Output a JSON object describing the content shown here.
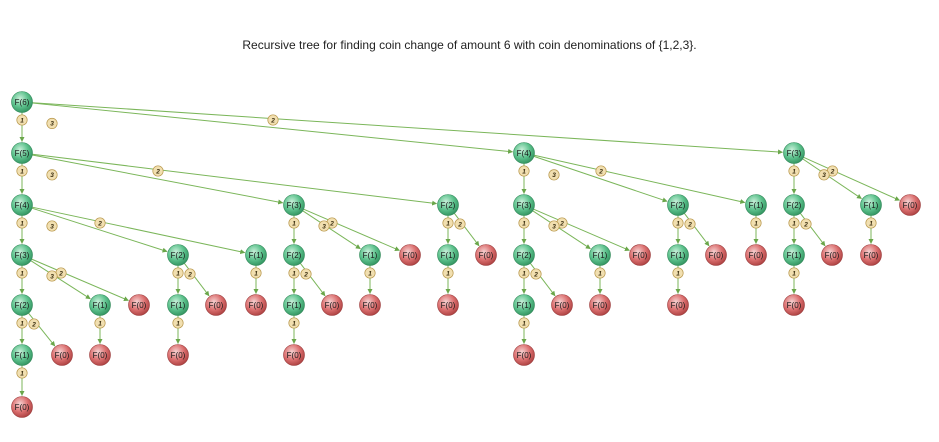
{
  "title": "Recursive tree for finding coin change of amount 6 with coin denominations of {1,2,3}.",
  "colors": {
    "nonzero_node": "#55bd86",
    "zero_node": "#d96a6a",
    "edge": "#7bb65a",
    "coin_fill": "#f1dfb0",
    "coin_stroke": "#b8974b"
  },
  "tree": {
    "label": "F(6)",
    "children": [
      {
        "coin": "1",
        "label": "F(5)",
        "children": [
          {
            "coin": "1",
            "label": "F(4)",
            "children": [
              {
                "coin": "1",
                "label": "F(3)",
                "children": [
                  {
                    "coin": "1",
                    "label": "F(2)",
                    "children": [
                      {
                        "coin": "1",
                        "label": "F(1)",
                        "children": [
                          {
                            "coin": "1",
                            "label": "F(0)"
                          }
                        ]
                      },
                      {
                        "coin": "2",
                        "label": "F(0)"
                      }
                    ]
                  },
                  {
                    "coin": "2",
                    "label": "F(1)",
                    "children": [
                      {
                        "coin": "1",
                        "label": "F(0)"
                      }
                    ]
                  },
                  {
                    "coin": "3",
                    "label": "F(0)"
                  }
                ]
              },
              {
                "coin": "2",
                "label": "F(2)",
                "children": [
                  {
                    "coin": "1",
                    "label": "F(1)",
                    "children": [
                      {
                        "coin": "1",
                        "label": "F(0)"
                      }
                    ]
                  },
                  {
                    "coin": "2",
                    "label": "F(0)"
                  }
                ]
              },
              {
                "coin": "3",
                "label": "F(1)",
                "children": [
                  {
                    "coin": "1",
                    "label": "F(0)"
                  }
                ]
              }
            ]
          },
          {
            "coin": "2",
            "label": "F(3)",
            "children": [
              {
                "coin": "1",
                "label": "F(2)",
                "children": [
                  {
                    "coin": "1",
                    "label": "F(1)",
                    "children": [
                      {
                        "coin": "1",
                        "label": "F(0)"
                      }
                    ]
                  },
                  {
                    "coin": "2",
                    "label": "F(0)"
                  }
                ]
              },
              {
                "coin": "2",
                "label": "F(1)",
                "children": [
                  {
                    "coin": "1",
                    "label": "F(0)"
                  }
                ]
              },
              {
                "coin": "3",
                "label": "F(0)"
              }
            ]
          },
          {
            "coin": "3",
            "label": "F(2)",
            "children": [
              {
                "coin": "1",
                "label": "F(1)",
                "children": [
                  {
                    "coin": "1",
                    "label": "F(0)"
                  }
                ]
              },
              {
                "coin": "2",
                "label": "F(0)"
              }
            ]
          }
        ]
      },
      {
        "coin": "2",
        "label": "F(4)",
        "children": [
          {
            "coin": "1",
            "label": "F(3)",
            "children": [
              {
                "coin": "1",
                "label": "F(2)",
                "children": [
                  {
                    "coin": "1",
                    "label": "F(1)",
                    "children": [
                      {
                        "coin": "1",
                        "label": "F(0)"
                      }
                    ]
                  },
                  {
                    "coin": "2",
                    "label": "F(0)"
                  }
                ]
              },
              {
                "coin": "2",
                "label": "F(1)",
                "children": [
                  {
                    "coin": "1",
                    "label": "F(0)"
                  }
                ]
              },
              {
                "coin": "3",
                "label": "F(0)"
              }
            ]
          },
          {
            "coin": "2",
            "label": "F(2)",
            "children": [
              {
                "coin": "1",
                "label": "F(1)",
                "children": [
                  {
                    "coin": "1",
                    "label": "F(0)"
                  }
                ]
              },
              {
                "coin": "2",
                "label": "F(0)"
              }
            ]
          },
          {
            "coin": "3",
            "label": "F(1)",
            "children": [
              {
                "coin": "1",
                "label": "F(0)"
              }
            ]
          }
        ]
      },
      {
        "coin": "3",
        "label": "F(3)",
        "children": [
          {
            "coin": "1",
            "label": "F(2)",
            "children": [
              {
                "coin": "1",
                "label": "F(1)",
                "children": [
                  {
                    "coin": "1",
                    "label": "F(0)"
                  }
                ]
              },
              {
                "coin": "2",
                "label": "F(0)"
              }
            ]
          },
          {
            "coin": "2",
            "label": "F(1)",
            "children": [
              {
                "coin": "1",
                "label": "F(0)"
              }
            ]
          },
          {
            "coin": "3",
            "label": "F(0)"
          }
        ]
      }
    ]
  }
}
